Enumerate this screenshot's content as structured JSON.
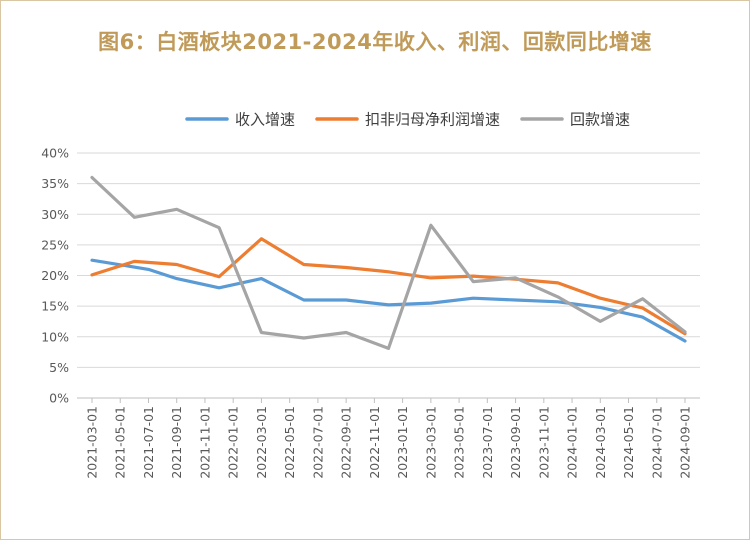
{
  "title": "图6：白酒板块2021-2024年收入、利润、回款同比增速",
  "chart_data": {
    "type": "line",
    "title": "图6：白酒板块2021-2024年收入、利润、回款同比增速",
    "xlabel": "",
    "ylabel": "",
    "ylim": [
      0,
      40
    ],
    "yticks": [
      "0%",
      "5%",
      "10%",
      "15%",
      "20%",
      "25%",
      "30%",
      "35%",
      "40%"
    ],
    "grid": true,
    "legend_position": "top",
    "categories": [
      "2021-03-01",
      "2021-05-01",
      "2021-07-01",
      "2021-09-01",
      "2021-11-01",
      "2022-01-01",
      "2022-03-01",
      "2022-05-01",
      "2022-07-01",
      "2022-09-01",
      "2022-11-01",
      "2023-01-01",
      "2023-03-01",
      "2023-05-01",
      "2023-07-01",
      "2023-09-01",
      "2023-11-01",
      "2024-01-01",
      "2024-03-01",
      "2024-05-01",
      "2024-07-01",
      "2024-09-01"
    ],
    "series": [
      {
        "name": "收入增速",
        "color": "#5b9bd5",
        "points": [
          [
            "2021-03-01",
            22.5
          ],
          [
            "2021-07-01",
            21.0
          ],
          [
            "2021-09-01",
            19.5
          ],
          [
            "2021-12-01",
            18.0
          ],
          [
            "2022-03-01",
            19.5
          ],
          [
            "2022-06-01",
            16.0
          ],
          [
            "2022-09-01",
            16.0
          ],
          [
            "2022-12-01",
            15.2
          ],
          [
            "2023-03-01",
            15.5
          ],
          [
            "2023-06-01",
            16.3
          ],
          [
            "2023-09-01",
            16.0
          ],
          [
            "2023-12-01",
            15.7
          ],
          [
            "2024-03-01",
            14.8
          ],
          [
            "2024-06-01",
            13.2
          ],
          [
            "2024-09-01",
            9.3
          ]
        ]
      },
      {
        "name": "扣非归母净利润增速",
        "color": "#ed7d31",
        "points": [
          [
            "2021-03-01",
            20.1
          ],
          [
            "2021-06-01",
            22.3
          ],
          [
            "2021-09-01",
            21.8
          ],
          [
            "2021-12-01",
            19.8
          ],
          [
            "2022-03-01",
            26.0
          ],
          [
            "2022-06-01",
            21.8
          ],
          [
            "2022-09-01",
            21.3
          ],
          [
            "2022-12-01",
            20.6
          ],
          [
            "2023-03-01",
            19.6
          ],
          [
            "2023-06-01",
            19.9
          ],
          [
            "2023-09-01",
            19.4
          ],
          [
            "2023-12-01",
            18.8
          ],
          [
            "2024-03-01",
            16.3
          ],
          [
            "2024-06-01",
            14.7
          ],
          [
            "2024-09-01",
            10.5
          ]
        ]
      },
      {
        "name": "回款增速",
        "color": "#a5a5a5",
        "points": [
          [
            "2021-03-01",
            36.0
          ],
          [
            "2021-06-01",
            29.5
          ],
          [
            "2021-09-01",
            30.8
          ],
          [
            "2021-12-01",
            27.8
          ],
          [
            "2022-03-01",
            10.7
          ],
          [
            "2022-06-01",
            9.8
          ],
          [
            "2022-09-01",
            10.7
          ],
          [
            "2022-12-01",
            8.1
          ],
          [
            "2023-03-01",
            28.2
          ],
          [
            "2023-06-01",
            19.0
          ],
          [
            "2023-09-01",
            19.6
          ],
          [
            "2023-12-01",
            16.5
          ],
          [
            "2024-03-01",
            12.5
          ],
          [
            "2024-06-01",
            16.2
          ],
          [
            "2024-09-01",
            10.8
          ]
        ]
      }
    ]
  }
}
